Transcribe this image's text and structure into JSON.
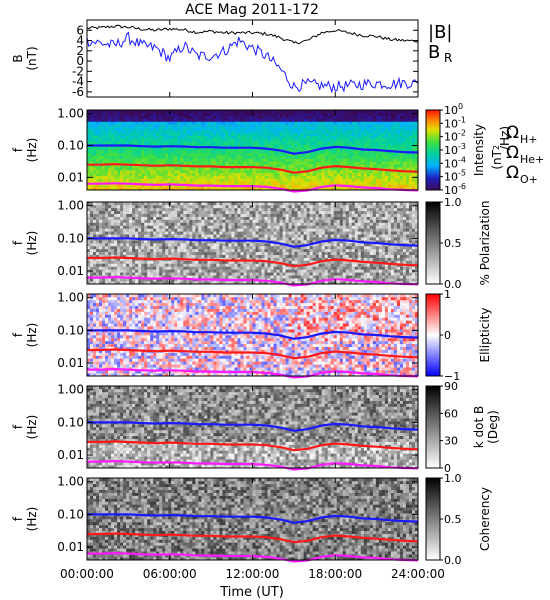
{
  "title": "ACE Mag 2011-172",
  "colors": {
    "total_field": "#000000",
    "radial_field": "#1a1aff",
    "h_plus": "#1a1aff",
    "he_plus": "#ff1a1a",
    "o_plus": "#ff1aff"
  },
  "x_axis": {
    "label": "Time (UT)",
    "range_hours": [
      0,
      24
    ],
    "ticks": [
      {
        "hour": 0,
        "label": "00:00:00"
      },
      {
        "hour": 6,
        "label": "06:00:00"
      },
      {
        "hour": 12,
        "label": "12:00:00"
      },
      {
        "hour": 18,
        "label": "18:00:00"
      },
      {
        "hour": 24,
        "label": "24:00:00"
      }
    ]
  },
  "freq_axis": {
    "label_top": "f",
    "label_bottom": "(Hz)",
    "scale": "log",
    "range": [
      0.004,
      1.3
    ],
    "ticks": [
      {
        "value": 1.0,
        "label": "1.00"
      },
      {
        "value": 0.1,
        "label": "0.10"
      },
      {
        "value": 0.01,
        "label": "0.01"
      }
    ]
  },
  "gyro_labels": {
    "h": {
      "symbol": "Ω",
      "sub": "H+"
    },
    "he": {
      "symbol": "Ω",
      "sub": "He+"
    },
    "o": {
      "symbol": "Ω",
      "sub": "O+"
    }
  },
  "chart_data": [
    {
      "type": "line",
      "name": "field",
      "ylabel_top": "B",
      "ylabel_bottom": "(nT)",
      "ylim": [
        -7,
        8
      ],
      "yticks": [
        {
          "value": 6,
          "label": "6"
        },
        {
          "value": 4,
          "label": "4"
        },
        {
          "value": 2,
          "label": "2"
        },
        {
          "value": 0,
          "label": "0"
        },
        {
          "value": -2,
          "label": "-2"
        },
        {
          "value": -4,
          "label": "-4"
        },
        {
          "value": -6,
          "label": "-6"
        }
      ],
      "x": [
        0,
        1,
        2,
        3,
        4,
        5,
        6,
        7,
        8,
        9,
        10,
        11,
        12,
        13,
        14,
        15,
        16,
        17,
        18,
        19,
        20,
        21,
        22,
        23,
        24
      ],
      "series": [
        {
          "name": "|B|",
          "legend": "|B|",
          "values": [
            6.4,
            6.5,
            6.8,
            6.6,
            6.2,
            6.0,
            6.3,
            6.1,
            5.6,
            5.8,
            5.5,
            5.5,
            5.5,
            5.3,
            4.6,
            3.5,
            4.0,
            5.5,
            6.0,
            5.5,
            5.0,
            4.8,
            4.2,
            4.0,
            3.9
          ]
        },
        {
          "name": "B_R",
          "legend_main": "B",
          "legend_sub": "R",
          "values": [
            4.0,
            3.5,
            3.0,
            4.5,
            3.0,
            2.5,
            0.5,
            3.0,
            1.0,
            1.0,
            2.0,
            4.0,
            2.5,
            1.0,
            -1.5,
            -5.0,
            -4.5,
            -4.8,
            -5.0,
            -4.8,
            -4.5,
            -4.3,
            -4.5,
            -4.2,
            -4.4
          ]
        }
      ]
    },
    {
      "type": "heatmap",
      "name": "intensity",
      "colorbar": {
        "label": "Intensity",
        "unit_main": "(nT",
        "unit_sup": "2",
        "unit_end": "/Hz)",
        "scale": "log",
        "range": [
          1e-06,
          1
        ],
        "ticks": [
          {
            "value": 0,
            "label": "10",
            "sup": "0"
          },
          {
            "value": -1,
            "label": "10",
            "sup": "-1"
          },
          {
            "value": -2,
            "label": "10",
            "sup": "-2"
          },
          {
            "value": -3,
            "label": "10",
            "sup": "-3"
          },
          {
            "value": -4,
            "label": "10",
            "sup": "-4"
          },
          {
            "value": -5,
            "label": "10",
            "sup": "-5"
          },
          {
            "value": -6,
            "label": "10",
            "sup": "-6"
          }
        ]
      }
    },
    {
      "type": "heatmap",
      "name": "polarization",
      "colorbar": {
        "label": "% Polarization",
        "range": [
          0,
          1
        ],
        "ticks": [
          {
            "value": 1.0,
            "label": "1.0"
          },
          {
            "value": 0.5,
            "label": "0.5"
          },
          {
            "value": 0.0,
            "label": "0.0"
          }
        ]
      }
    },
    {
      "type": "heatmap",
      "name": "ellipticity",
      "colorbar": {
        "label": "Ellipticity",
        "range": [
          -1,
          1
        ],
        "ticks": [
          {
            "value": 1,
            "label": "1"
          },
          {
            "value": 0,
            "label": "0"
          },
          {
            "value": -1,
            "label": "−1"
          }
        ]
      }
    },
    {
      "type": "heatmap",
      "name": "kdotb",
      "colorbar": {
        "label": "k dot B",
        "unit": "(Deg)",
        "range": [
          0,
          90
        ],
        "ticks": [
          {
            "value": 90,
            "label": "90"
          },
          {
            "value": 60,
            "label": "60"
          },
          {
            "value": 30,
            "label": "30"
          },
          {
            "value": 0,
            "label": "0"
          }
        ]
      }
    },
    {
      "type": "heatmap",
      "name": "coherency",
      "colorbar": {
        "label": "Coherency",
        "range": [
          0,
          1
        ],
        "ticks": [
          {
            "value": 1.0,
            "label": "1.0"
          },
          {
            "value": 0.5,
            "label": "0.5"
          },
          {
            "value": 0.0,
            "label": "0.0"
          }
        ]
      }
    }
  ],
  "gyro_lines": {
    "hours": [
      0,
      1,
      2,
      3,
      4,
      5,
      6,
      7,
      8,
      9,
      10,
      11,
      12,
      13,
      14,
      15,
      16,
      17,
      18,
      19,
      20,
      21,
      22,
      23,
      24
    ],
    "h_plus": [
      0.1,
      0.1,
      0.1,
      0.1,
      0.095,
      0.092,
      0.095,
      0.093,
      0.088,
      0.088,
      0.085,
      0.085,
      0.085,
      0.08,
      0.07,
      0.055,
      0.062,
      0.08,
      0.09,
      0.085,
      0.075,
      0.072,
      0.066,
      0.062,
      0.06
    ],
    "he_plus": [
      0.025,
      0.025,
      0.026,
      0.025,
      0.024,
      0.023,
      0.024,
      0.023,
      0.022,
      0.022,
      0.021,
      0.021,
      0.021,
      0.02,
      0.0175,
      0.014,
      0.0155,
      0.02,
      0.0225,
      0.021,
      0.019,
      0.018,
      0.0165,
      0.0155,
      0.015
    ],
    "o_plus": [
      0.0063,
      0.0063,
      0.0065,
      0.0063,
      0.006,
      0.0058,
      0.006,
      0.0058,
      0.0055,
      0.0055,
      0.0053,
      0.0053,
      0.0053,
      0.005,
      0.0044,
      0.0036,
      0.0039,
      0.005,
      0.0056,
      0.0053,
      0.0048,
      0.0046,
      0.0042,
      0.004,
      0.0039
    ]
  }
}
